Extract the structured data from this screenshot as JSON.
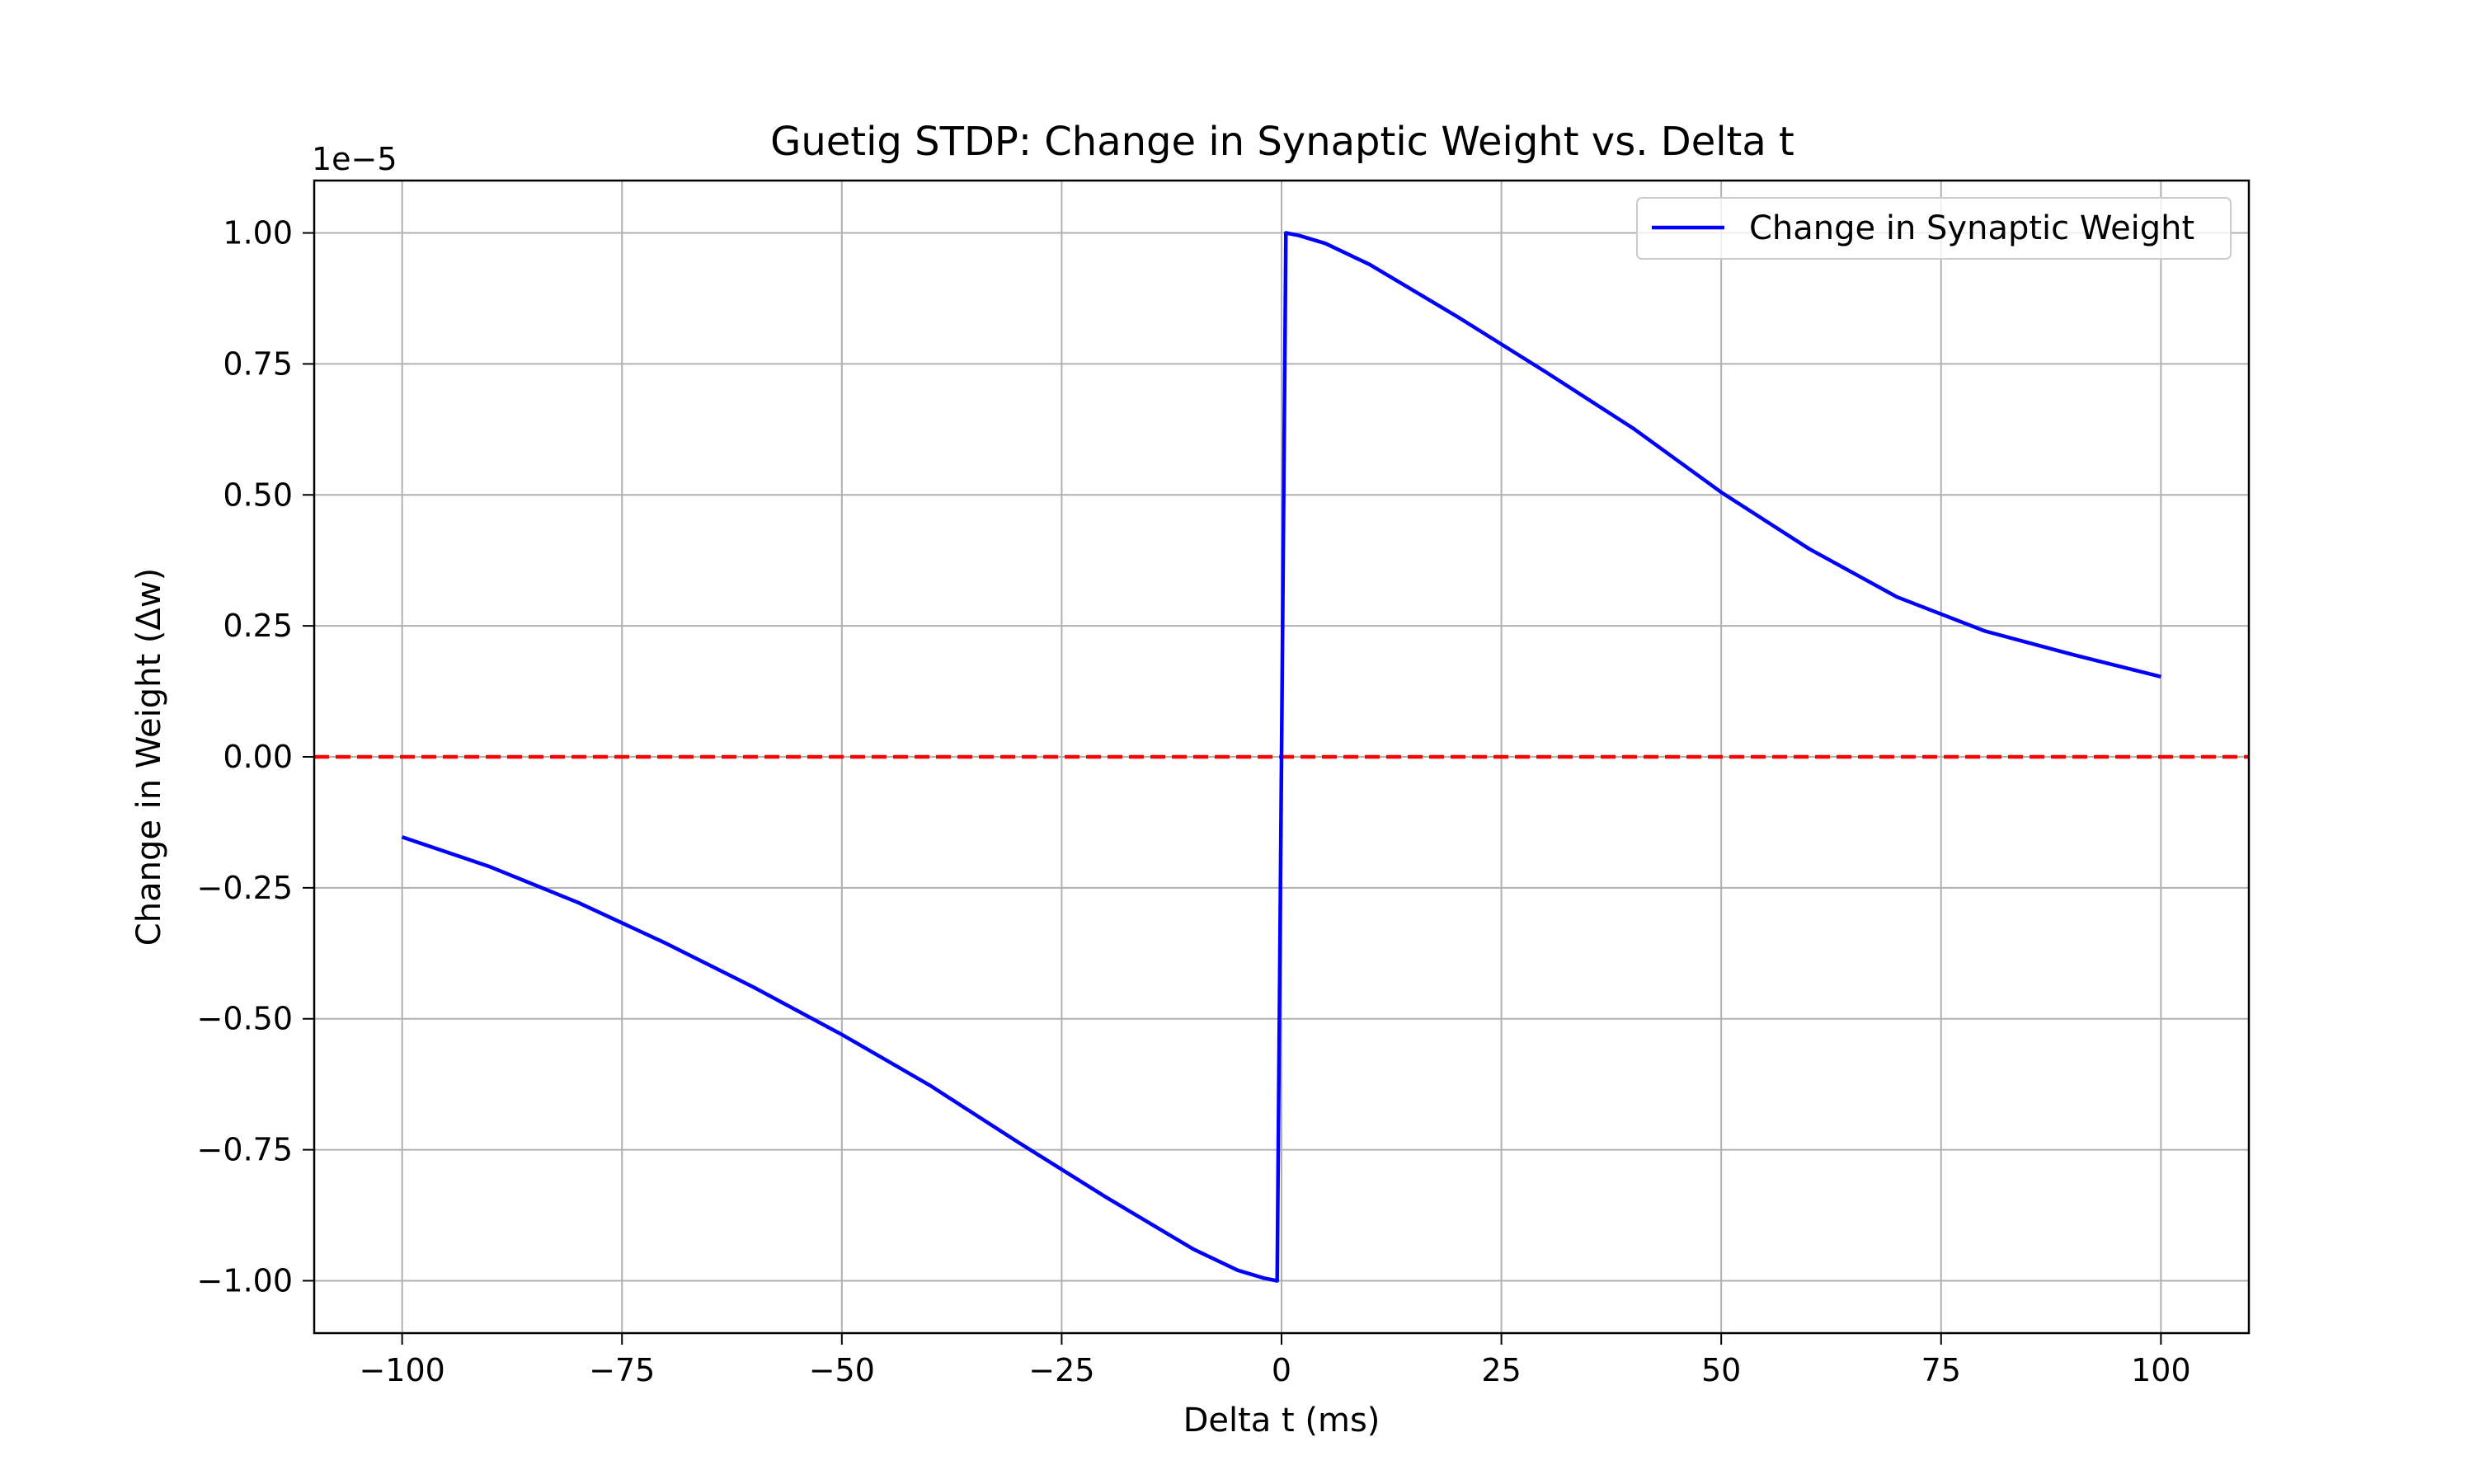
{
  "chart_data": {
    "type": "line",
    "title": "Guetig STDP: Change in Synaptic Weight vs. Delta t",
    "xlabel": "Delta t (ms)",
    "ylabel": "Change in Weight (Δw)",
    "y_offset_label": "1e−5",
    "xlim": [
      -110,
      110
    ],
    "ylim": [
      -1.1,
      1.1
    ],
    "xticks": [
      -100,
      -75,
      -50,
      -25,
      0,
      25,
      50,
      75,
      100
    ],
    "xtick_labels": [
      "−100",
      "−75",
      "−50",
      "−25",
      "0",
      "25",
      "50",
      "75",
      "100"
    ],
    "yticks": [
      -1.0,
      -0.75,
      -0.5,
      -0.25,
      0.0,
      0.25,
      0.5,
      0.75,
      1.0
    ],
    "ytick_labels": [
      "−1.00",
      "−0.75",
      "−0.50",
      "−0.25",
      "0.00",
      "0.25",
      "0.50",
      "0.75",
      "1.00"
    ],
    "grid": true,
    "legend_position": "top-right",
    "series": [
      {
        "name": "Change in Synaptic Weight",
        "color": "#0000ff",
        "x": [
          -100,
          -90,
          -80,
          -70,
          -60,
          -50,
          -40,
          -30,
          -20,
          -15,
          -10,
          -5,
          -2,
          -0.5,
          0.5,
          2,
          5,
          10,
          15,
          20,
          30,
          40,
          50,
          60,
          70,
          80,
          90,
          100
        ],
        "y": [
          -0.153,
          -0.21,
          -0.278,
          -0.356,
          -0.44,
          -0.53,
          -0.627,
          -0.735,
          -0.84,
          -0.89,
          -0.94,
          -0.98,
          -0.995,
          -1.0,
          1.0,
          0.995,
          0.98,
          0.94,
          0.89,
          0.84,
          0.735,
          0.627,
          0.505,
          0.397,
          0.305,
          0.24,
          0.195,
          0.153
        ]
      }
    ],
    "reference_line": {
      "y": 0.0,
      "color": "#ff0000",
      "style": "dashed"
    }
  }
}
